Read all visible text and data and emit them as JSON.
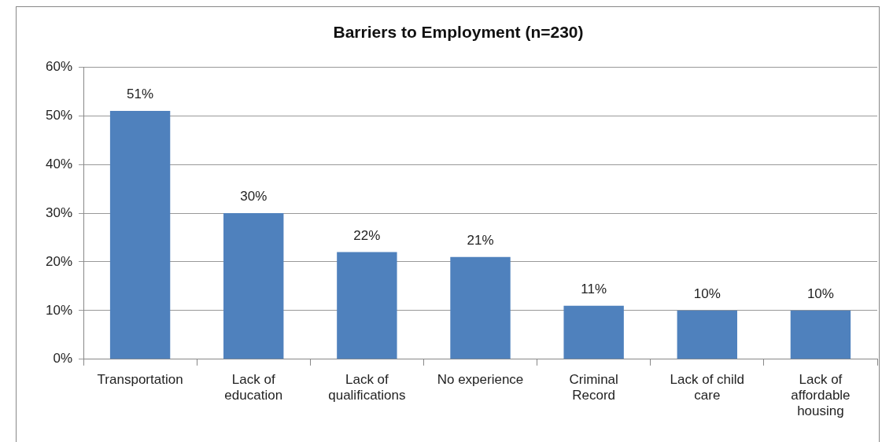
{
  "chart_data": {
    "type": "bar",
    "title": "Barriers to Employment (n=230)",
    "categories": [
      "Transportation",
      "Lack of education",
      "Lack of qualifications",
      "No experience",
      "Criminal Record",
      "Lack of child care",
      "Lack of affordable housing"
    ],
    "values": [
      51,
      30,
      22,
      21,
      11,
      10,
      10
    ],
    "value_labels": [
      "51%",
      "30%",
      "22%",
      "21%",
      "11%",
      "10%",
      "10%"
    ],
    "color": "#4f81bd",
    "ylim": [
      0,
      60
    ],
    "yticks": [
      {
        "value": 0,
        "label": "0%"
      },
      {
        "value": 10,
        "label": "10%"
      },
      {
        "value": 20,
        "label": "20%"
      },
      {
        "value": 30,
        "label": "30%"
      },
      {
        "value": 40,
        "label": "40%"
      },
      {
        "value": 50,
        "label": "50%"
      },
      {
        "value": 60,
        "label": "60%"
      }
    ],
    "grid": "y"
  }
}
